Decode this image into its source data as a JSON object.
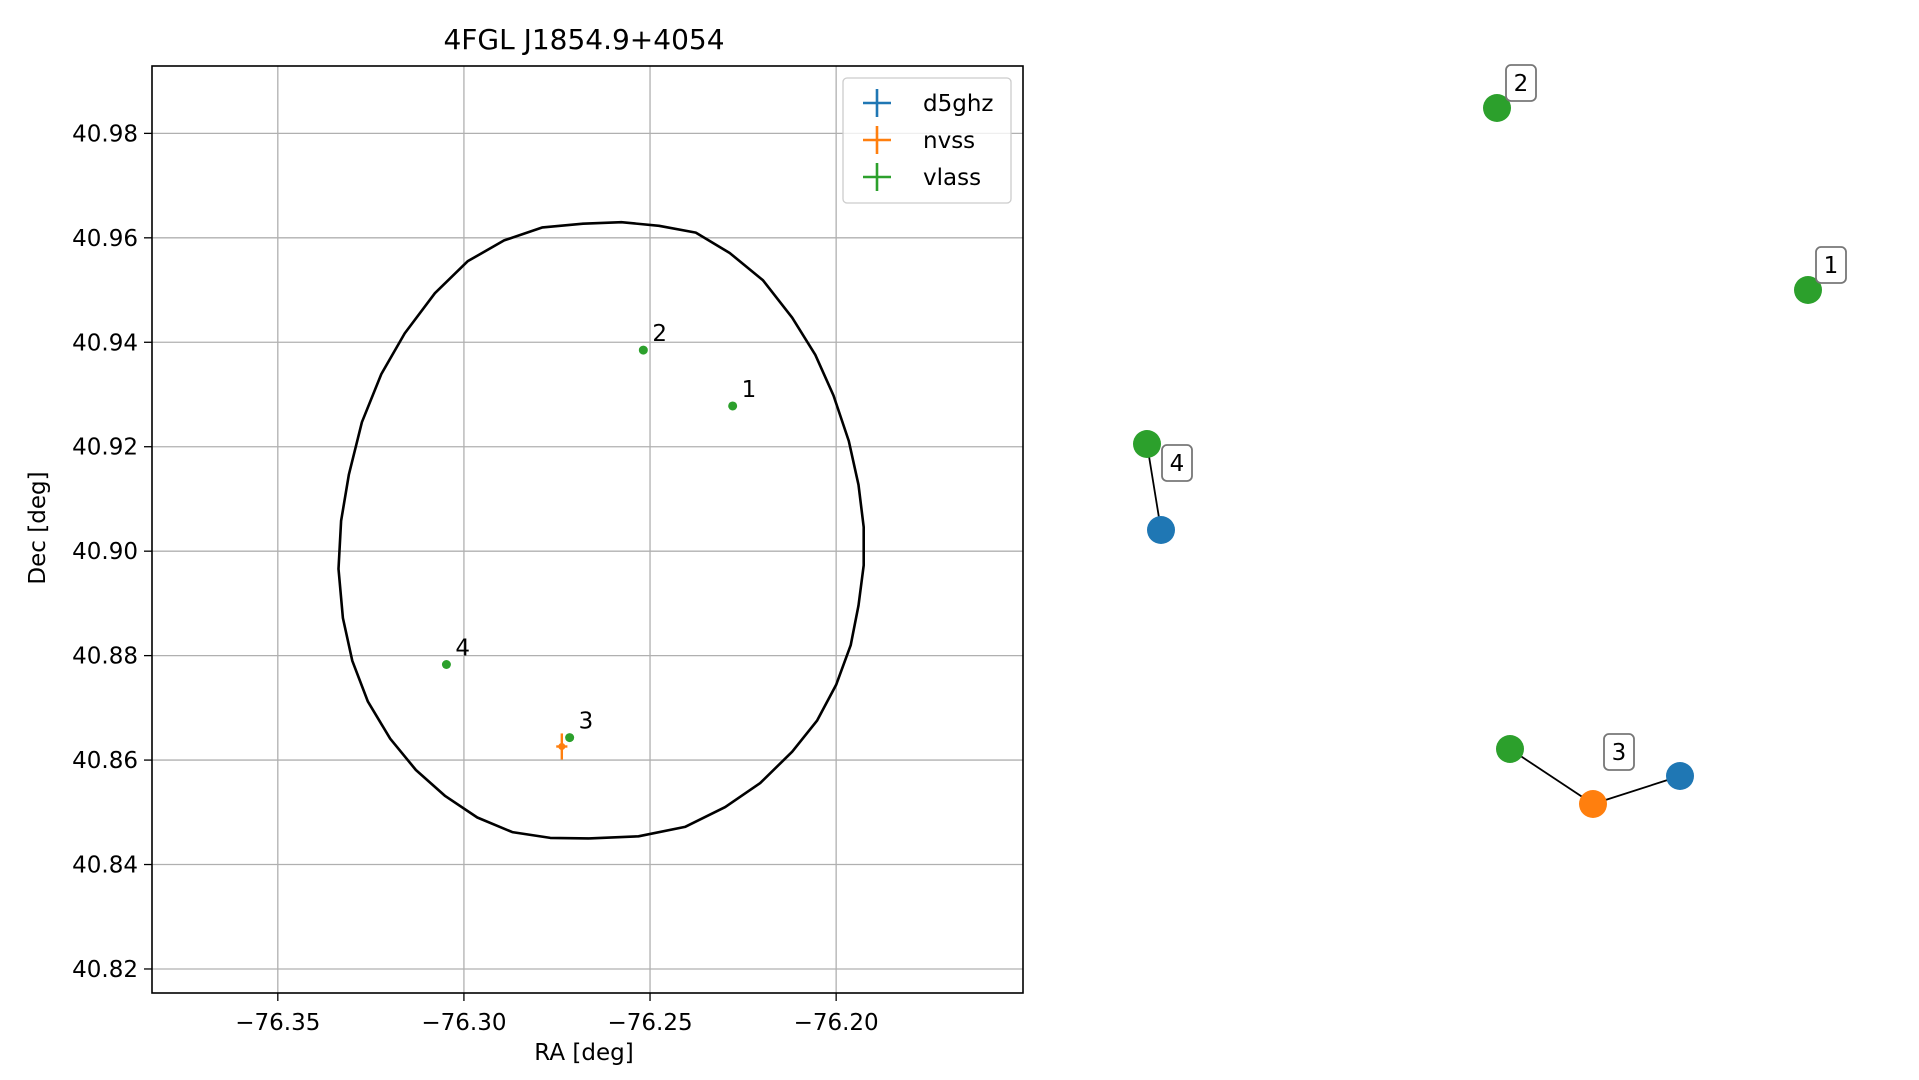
{
  "chart_data": [
    {
      "type": "scatter",
      "title": "4FGL J1854.9+4054",
      "xlabel": "RA [deg]",
      "ylabel": "Dec [deg]",
      "xlim": [
        -76.3838,
        -76.1498
      ],
      "ylim": [
        40.8154,
        40.9929
      ],
      "x_ticks": [
        -76.35,
        -76.3,
        -76.25,
        -76.2
      ],
      "x_tick_labels": [
        "−76.35",
        "−76.30",
        "−76.25",
        "−76.20"
      ],
      "y_ticks": [
        40.82,
        40.84,
        40.86,
        40.88,
        40.9,
        40.92,
        40.94,
        40.96,
        40.98
      ],
      "y_tick_labels": [
        "40.82",
        "40.84",
        "40.86",
        "40.88",
        "40.90",
        "40.92",
        "40.94",
        "40.96",
        "40.98"
      ],
      "grid": true,
      "legend_position": "top-right",
      "ellipse": {
        "color": "#000000",
        "points": [
          [
            -76.2664,
            40.845
          ],
          [
            -76.2531,
            40.8454
          ],
          [
            -76.2406,
            40.8472
          ],
          [
            -76.2298,
            40.851
          ],
          [
            -76.2204,
            40.8556
          ],
          [
            -76.2118,
            40.8616
          ],
          [
            -76.2051,
            40.8676
          ],
          [
            -76.2,
            40.8744
          ],
          [
            -76.1961,
            40.882
          ],
          [
            -76.194,
            40.8896
          ],
          [
            -76.1926,
            40.8973
          ],
          [
            -76.1926,
            40.9046
          ],
          [
            -76.194,
            40.9127
          ],
          [
            -76.1966,
            40.9211
          ],
          [
            -76.2007,
            40.9298
          ],
          [
            -76.2056,
            40.9376
          ],
          [
            -76.2118,
            40.9447
          ],
          [
            -76.2197,
            40.9519
          ],
          [
            -76.2286,
            40.9571
          ],
          [
            -76.2377,
            40.961
          ],
          [
            -76.2476,
            40.9623
          ],
          [
            -76.2577,
            40.963
          ],
          [
            -76.268,
            40.9627
          ],
          [
            -76.2789,
            40.962
          ],
          [
            -76.2892,
            40.9595
          ],
          [
            -76.299,
            40.9555
          ],
          [
            -76.3078,
            40.9494
          ],
          [
            -76.3159,
            40.9417
          ],
          [
            -76.3222,
            40.9339
          ],
          [
            -76.3274,
            40.9247
          ],
          [
            -76.3309,
            40.9147
          ],
          [
            -76.333,
            40.9058
          ],
          [
            -76.3337,
            40.8966
          ],
          [
            -76.3325,
            40.8872
          ],
          [
            -76.33,
            40.879
          ],
          [
            -76.3258,
            40.8712
          ],
          [
            -76.3198,
            40.8641
          ],
          [
            -76.3129,
            40.8581
          ],
          [
            -76.305,
            40.8531
          ],
          [
            -76.2964,
            40.849
          ],
          [
            -76.287,
            40.8462
          ],
          [
            -76.2768,
            40.8451
          ],
          [
            -76.2664,
            40.845
          ]
        ]
      },
      "series": [
        {
          "name": "d5ghz",
          "color": "#1f77b4",
          "points": []
        },
        {
          "name": "nvss",
          "color": "#ff7f0e",
          "points": [
            {
              "x": -76.2737,
              "y": 40.8626,
              "xerr": 0.0015,
              "yerr": 0.0025
            }
          ]
        },
        {
          "name": "vlass",
          "color": "#2ca02c",
          "points": [
            {
              "x": -76.2278,
              "y": 40.9278,
              "label": "1"
            },
            {
              "x": -76.2518,
              "y": 40.9385,
              "label": "2"
            },
            {
              "x": -76.2716,
              "y": 40.8643,
              "label": "3"
            },
            {
              "x": -76.3047,
              "y": 40.8783,
              "label": "4"
            }
          ]
        }
      ]
    },
    {
      "type": "diagram",
      "description": "match network",
      "colors": {
        "d5ghz": "#1f77b4",
        "nvss": "#ff7f0e",
        "vlass": "#2ca02c"
      },
      "nodes": [
        {
          "id": "n1",
          "survey": "vlass",
          "label": "1"
        },
        {
          "id": "n2",
          "survey": "vlass",
          "label": "2"
        },
        {
          "id": "n3",
          "survey": "vlass"
        },
        {
          "id": "n4",
          "survey": "nvss",
          "label": "3"
        },
        {
          "id": "n5",
          "survey": "d5ghz"
        },
        {
          "id": "n6",
          "survey": "vlass"
        },
        {
          "id": "n7",
          "survey": "d5ghz",
          "label": "4"
        }
      ],
      "edges": [
        [
          "n3",
          "n4"
        ],
        [
          "n4",
          "n5"
        ],
        [
          "n6",
          "n7"
        ]
      ]
    }
  ]
}
